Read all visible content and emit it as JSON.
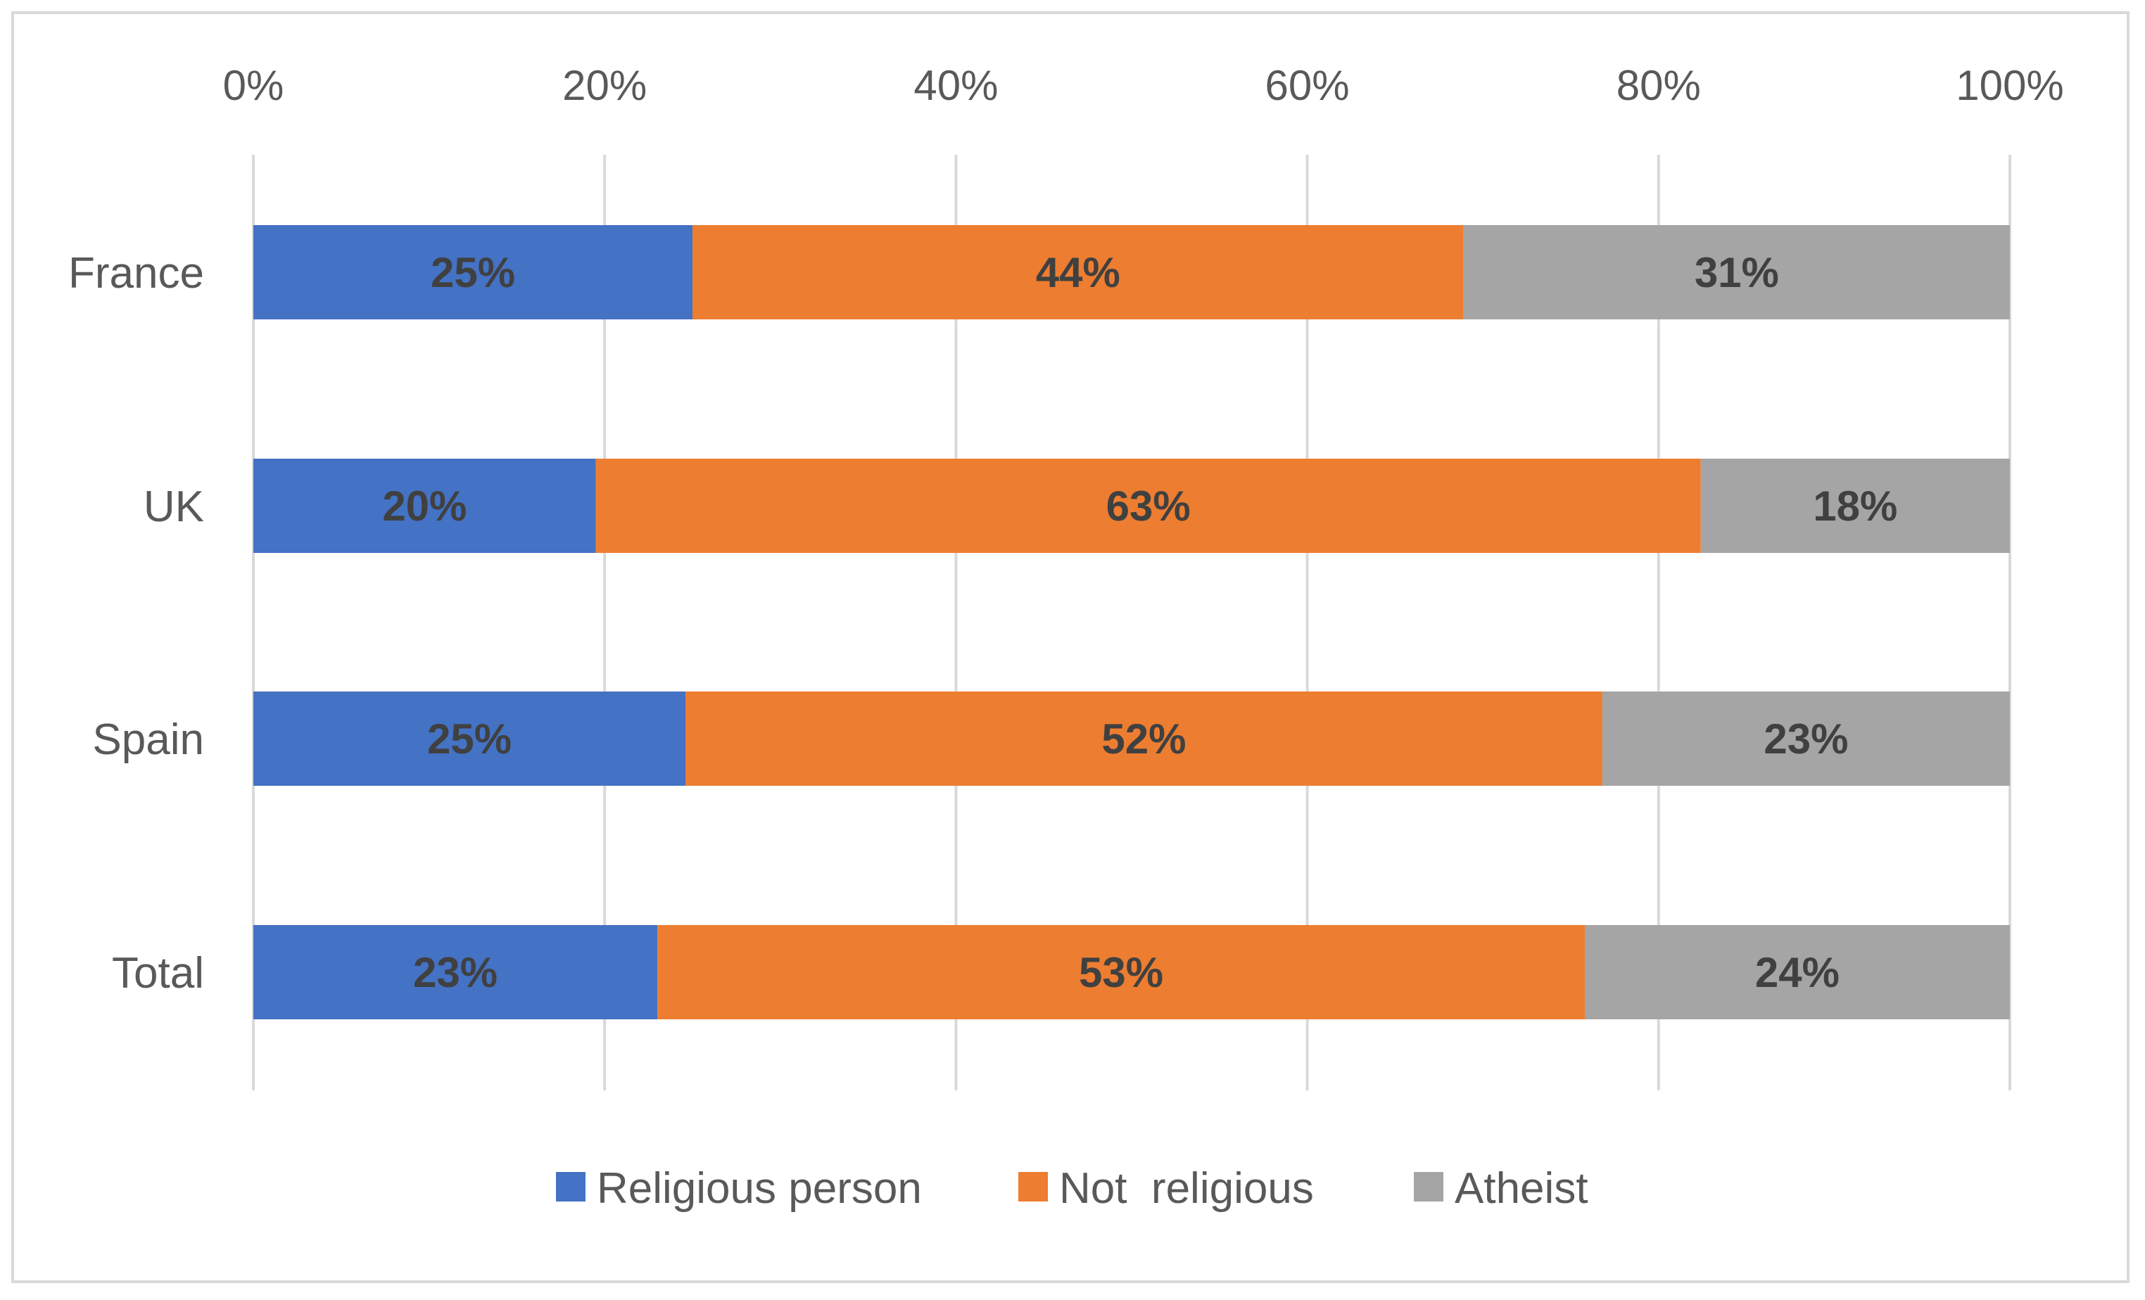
{
  "chart_data": {
    "type": "bar",
    "orientation": "horizontal",
    "stacked": "percent",
    "categories": [
      "France",
      "UK",
      "Spain",
      "Total"
    ],
    "series": [
      {
        "name": "Religious person",
        "color": "#4472C4",
        "values": [
          25,
          19.5,
          24.6,
          23
        ],
        "labels": [
          "25%",
          "20%",
          "25%",
          "23%"
        ]
      },
      {
        "name": "Not  religious",
        "color": "#ED7D31",
        "values": [
          43.9,
          62.9,
          52.2,
          52.8
        ],
        "labels": [
          "44%",
          "63%",
          "52%",
          "53%"
        ]
      },
      {
        "name": "Atheist",
        "color": "#A5A5A5",
        "values": [
          31.1,
          17.6,
          23.2,
          24.2
        ],
        "labels": [
          "31%",
          "18%",
          "23%",
          "24%"
        ]
      }
    ],
    "x_ticks": [
      "0%",
      "20%",
      "40%",
      "60%",
      "80%",
      "100%"
    ],
    "xlim": [
      0,
      100
    ],
    "x_axis_position": "top",
    "grid": true,
    "legend_position": "bottom"
  }
}
